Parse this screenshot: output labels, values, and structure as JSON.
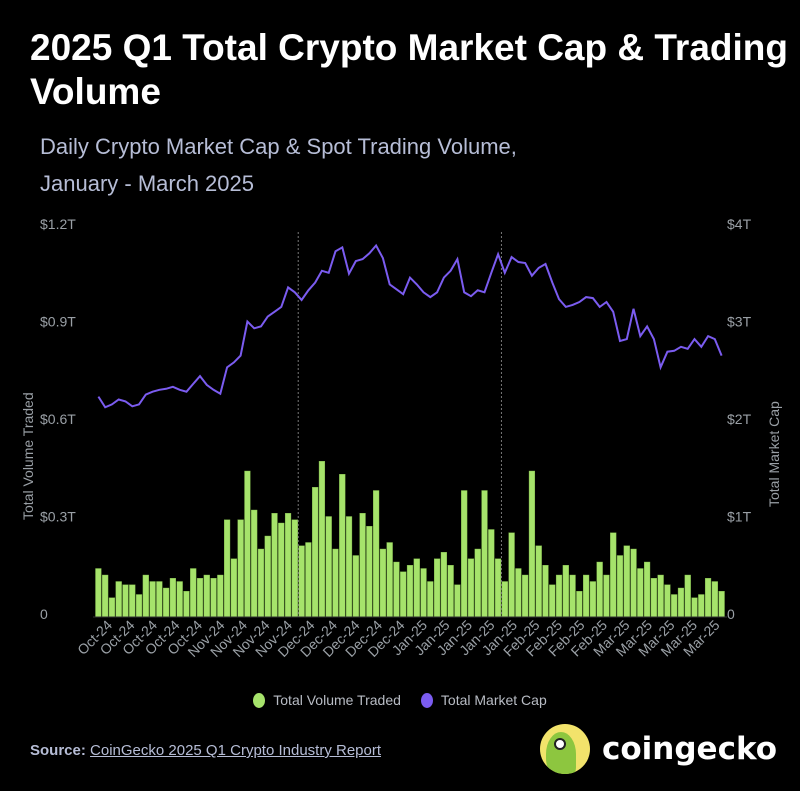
{
  "header": {
    "title": "2025 Q1 Total Crypto Market Cap & Trading Volume",
    "subtitle_line1": "Daily Crypto Market Cap & Spot Trading Volume,",
    "subtitle_line2": "January - March 2025"
  },
  "chart_data": {
    "type": "bar+line",
    "title": "2025 Q1 Total Crypto Market Cap & Trading Volume",
    "ylabel_left": "Total Volume Traded",
    "ylabel_right": "Total Market Cap",
    "left_ticks": [
      "0",
      "$0.3T",
      "$0.6T",
      "$0.9T",
      "$1.2T"
    ],
    "right_ticks": [
      "0",
      "$1T",
      "$2T",
      "$3T",
      "$4T"
    ],
    "ylim_left": [
      0,
      1.2
    ],
    "ylim_right": [
      0,
      4
    ],
    "x_tick_labels": [
      "Oct-24",
      "Oct-24",
      "Oct-24",
      "Oct-24",
      "Oct-24",
      "Nov-24",
      "Nov-24",
      "Nov-24",
      "Nov-24",
      "Dec-24",
      "Dec-24",
      "Dec-24",
      "Dec-24",
      "Dec-24",
      "Jan-25",
      "Jan-25",
      "Jan-25",
      "Jan-25",
      "Jan-25",
      "Feb-25",
      "Feb-25",
      "Feb-25",
      "Feb-25",
      "Mar-25",
      "Mar-25",
      "Mar-25",
      "Mar-25",
      "Mar-25"
    ],
    "reference_line_indices": [
      30,
      60
    ],
    "series": [
      {
        "name": "Total Volume Traded",
        "type": "bar",
        "axis": "left",
        "unit": "T USD",
        "color": "#a6e36b",
        "values": [
          0.14,
          0.12,
          0.05,
          0.1,
          0.09,
          0.09,
          0.06,
          0.12,
          0.1,
          0.1,
          0.08,
          0.11,
          0.1,
          0.07,
          0.14,
          0.11,
          0.12,
          0.11,
          0.12,
          0.29,
          0.17,
          0.29,
          0.44,
          0.32,
          0.2,
          0.24,
          0.31,
          0.28,
          0.31,
          0.29,
          0.21,
          0.22,
          0.39,
          0.47,
          0.3,
          0.2,
          0.43,
          0.3,
          0.18,
          0.31,
          0.27,
          0.38,
          0.2,
          0.22,
          0.16,
          0.13,
          0.15,
          0.17,
          0.14,
          0.1,
          0.17,
          0.19,
          0.15,
          0.09,
          0.38,
          0.17,
          0.2,
          0.38,
          0.26,
          0.17,
          0.1,
          0.25,
          0.14,
          0.12,
          0.44,
          0.21,
          0.15,
          0.09,
          0.12,
          0.15,
          0.12,
          0.07,
          0.12,
          0.1,
          0.16,
          0.12,
          0.25,
          0.18,
          0.21,
          0.2,
          0.14,
          0.16,
          0.11,
          0.12,
          0.09,
          0.06,
          0.08,
          0.12,
          0.05,
          0.06,
          0.11,
          0.1,
          0.07
        ]
      },
      {
        "name": "Total Market Cap",
        "type": "line",
        "axis": "right",
        "unit": "T USD",
        "color": "#7b5cf0",
        "values": [
          2.23,
          2.12,
          2.15,
          2.2,
          2.18,
          2.13,
          2.15,
          2.25,
          2.28,
          2.3,
          2.31,
          2.33,
          2.3,
          2.28,
          2.36,
          2.44,
          2.35,
          2.3,
          2.26,
          2.53,
          2.58,
          2.65,
          3.0,
          2.93,
          2.95,
          3.05,
          3.1,
          3.15,
          3.35,
          3.3,
          3.22,
          3.32,
          3.4,
          3.52,
          3.5,
          3.72,
          3.76,
          3.49,
          3.62,
          3.64,
          3.7,
          3.78,
          3.65,
          3.38,
          3.33,
          3.28,
          3.45,
          3.38,
          3.3,
          3.25,
          3.3,
          3.45,
          3.52,
          3.64,
          3.3,
          3.26,
          3.32,
          3.3,
          3.5,
          3.69,
          3.5,
          3.66,
          3.61,
          3.6,
          3.47,
          3.55,
          3.59,
          3.4,
          3.23,
          3.15,
          3.17,
          3.2,
          3.25,
          3.24,
          3.15,
          3.2,
          3.1,
          2.8,
          2.82,
          3.13,
          2.85,
          2.95,
          2.82,
          2.53,
          2.69,
          2.7,
          2.74,
          2.72,
          2.82,
          2.74,
          2.85,
          2.82,
          2.65
        ]
      }
    ],
    "legend": {
      "placement": "bottom",
      "items": [
        "Total Volume Traded",
        "Total Market Cap"
      ]
    }
  },
  "footer": {
    "source_label": "Source:",
    "source_link": "CoinGecko 2025 Q1 Crypto Industry Report",
    "brand": "coingecko"
  }
}
